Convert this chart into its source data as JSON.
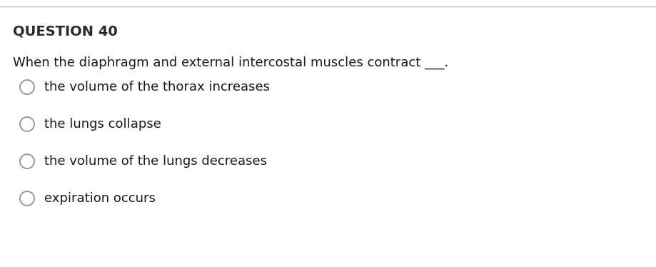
{
  "title": "QUESTION 40",
  "question": "When the diaphragm and external intercostal muscles contract ___.",
  "options": [
    "the volume of the thorax increases",
    "the lungs collapse",
    "the volume of the lungs decreases",
    "expiration occurs"
  ],
  "bg_color": "#ffffff",
  "title_color": "#2b2b2b",
  "question_color": "#1a1a1a",
  "option_color": "#1a1a1a",
  "top_line_color": "#c0c0c0",
  "circle_edge_color": "#999999",
  "title_fontsize": 14,
  "question_fontsize": 13,
  "option_fontsize": 13
}
